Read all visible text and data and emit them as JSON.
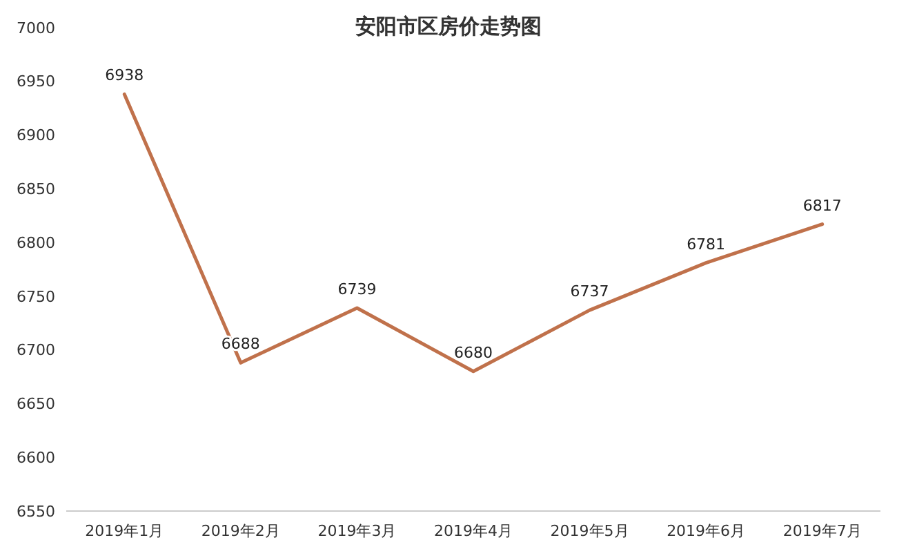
{
  "chart_data": {
    "type": "line",
    "title": "安阳市区房价走势图",
    "categories": [
      "2019年1月",
      "2019年2月",
      "2019年3月",
      "2019年4月",
      "2019年5月",
      "2019年6月",
      "2019年7月"
    ],
    "series": [
      {
        "color": "#c0714b",
        "values": [
          6938,
          6688,
          6739,
          6680,
          6737,
          6781,
          6817
        ]
      }
    ],
    "ylim": [
      6550,
      7000
    ],
    "yticks": [
      6550,
      6600,
      6650,
      6700,
      6750,
      6800,
      6850,
      6900,
      6950,
      7000
    ],
    "data_labels": true,
    "grid": false,
    "marker": "none",
    "line_style": "solid"
  }
}
